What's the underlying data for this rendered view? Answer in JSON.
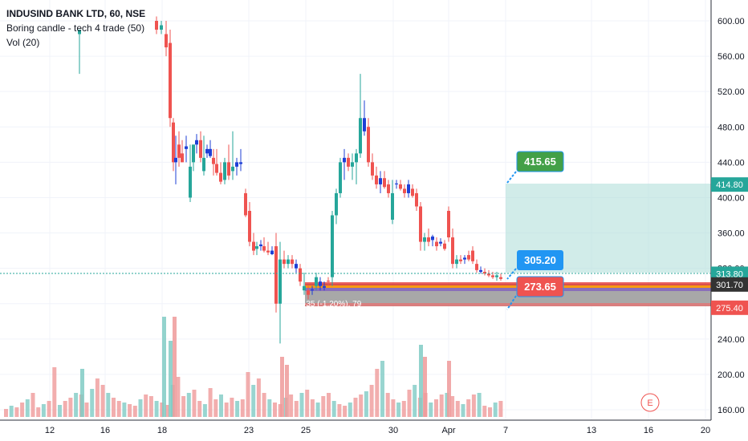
{
  "legend": {
    "title": "INDUSIND BANK LTD, 60, NSE",
    "indicator1": "Boring candle - tech 4 trade (50)",
    "indicator2": "Vol (20)"
  },
  "colors": {
    "up": "#26a69a",
    "down": "#ef5350",
    "boring_up": "#1e3fd6",
    "target_zone": "#b2dfdb",
    "stop_zone": "#9e9e9e",
    "green_callout": "#43a047",
    "blue_callout": "#2196f3",
    "red_callout": "#ef5350",
    "current_price": "#26a69a",
    "dark_tag": "#333333",
    "red_tag": "#ef5350",
    "teal_tag": "#26a69a"
  },
  "price_axis": {
    "ticks": [
      "600.00",
      "560.00",
      "520.00",
      "480.00",
      "440.00",
      "400.00",
      "360.00",
      "320.00",
      "280.00",
      "240.00",
      "200.00",
      "160.00"
    ],
    "tags": [
      {
        "label": "414.80",
        "value": 414.8,
        "color": "teal"
      },
      {
        "label": "313.80",
        "value": 313.8,
        "color": "teal"
      },
      {
        "label": "301.70",
        "value": 301.7,
        "color": "dark"
      },
      {
        "label": "275.40",
        "value": 275.4,
        "color": "red"
      }
    ]
  },
  "time_axis": {
    "ticks": [
      "12",
      "16",
      "18",
      "23",
      "25",
      "30",
      "Apr",
      "7",
      "13",
      "16",
      "20"
    ]
  },
  "callouts": {
    "target": "415.65",
    "entry": "305.20",
    "stop": "273.65"
  },
  "position_label": "-35 (-1.20%), 79",
  "events_icon": "E",
  "chart_data": {
    "type": "candlestick",
    "title": "INDUSIND BANK LTD, 60, NSE",
    "ylim": [
      155,
      620
    ],
    "grid": true,
    "legend_position": "top-left",
    "x": [
      "12",
      "16",
      "18",
      "23",
      "25",
      "30",
      "Apr",
      "7",
      "13",
      "16",
      "20"
    ],
    "series": [
      {
        "name": "price",
        "levels": {
          "target": 415.65,
          "entry": 305.2,
          "stop": 273.65,
          "last": 313.8
        }
      },
      {
        "name": "Vol (20)"
      }
    ]
  }
}
